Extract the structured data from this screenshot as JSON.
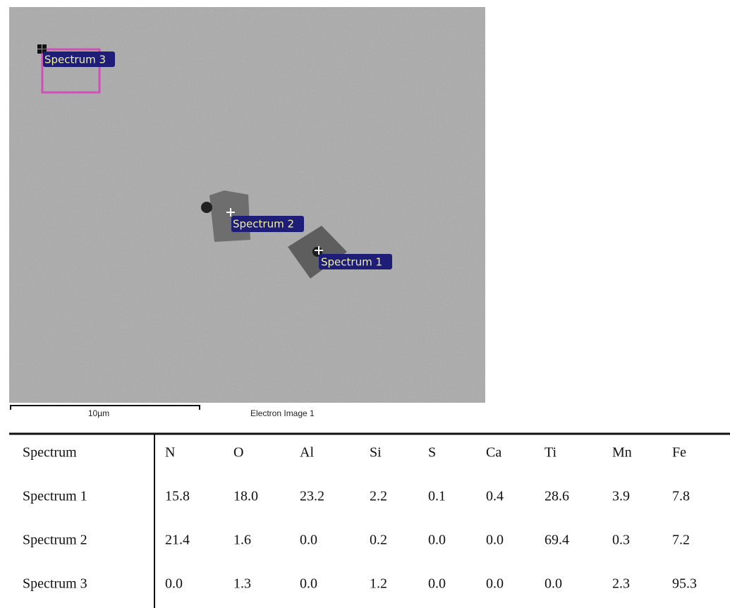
{
  "image": {
    "labels": [
      "Spectrum 3",
      "Spectrum 2",
      "Spectrum 1"
    ],
    "scale_bar": "10µm",
    "caption": "Electron Image 1"
  },
  "table": {
    "header": [
      "Spectrum",
      "N",
      "O",
      "Al",
      "Si",
      "S",
      "Ca",
      "Ti",
      "Mn",
      "Fe"
    ],
    "rows": [
      [
        "Spectrum 1",
        "15.8",
        "18.0",
        "23.2",
        "2.2",
        "0.1",
        "0.4",
        "28.6",
        "3.9",
        "7.8"
      ],
      [
        "Spectrum 2",
        "21.4",
        "1.6",
        "0.0",
        "0.2",
        "0.0",
        "0.0",
        "69.4",
        "0.3",
        "7.2"
      ],
      [
        "Spectrum 3",
        "0.0",
        "1.3",
        "0.0",
        "1.2",
        "0.0",
        "0.0",
        "0.0",
        "2.3",
        "95.3"
      ]
    ]
  }
}
